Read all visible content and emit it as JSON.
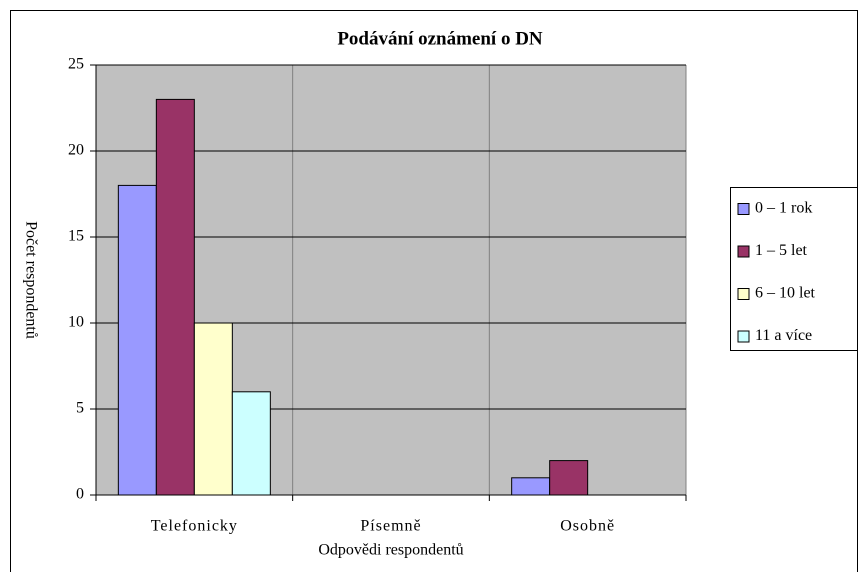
{
  "chart_data": {
    "type": "bar",
    "title": "Podávání oznámení o DN",
    "x_label": "Odpovědi respondentů",
    "y_label": "Počet respondentů",
    "categories": [
      "Telefonicky",
      "Písemně",
      "Osobně"
    ],
    "series": [
      {
        "name": "0 – 1 rok",
        "color": "#9999ff",
        "values": [
          18,
          0,
          1
        ]
      },
      {
        "name": "1 – 5 let",
        "color": "#993366",
        "values": [
          23,
          0,
          2
        ]
      },
      {
        "name": "6 – 10 let",
        "color": "#ffffcc",
        "values": [
          10,
          0,
          0
        ]
      },
      {
        "name": "11 a více",
        "color": "#ccffff",
        "values": [
          6,
          0,
          0
        ]
      }
    ],
    "ylim": [
      0,
      25
    ],
    "yticks": [
      0,
      5,
      10,
      15,
      20,
      25
    ],
    "grid": true,
    "legend": "right",
    "plot_background": "#c0c0c0"
  }
}
